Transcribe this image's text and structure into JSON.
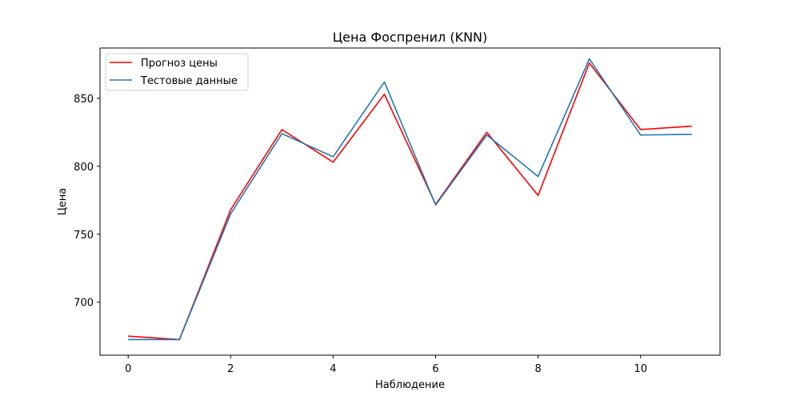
{
  "chart_data": {
    "type": "line",
    "title": "Цена Фоспренил (KNN)",
    "xlabel": "Наблюдение",
    "ylabel": "Цена",
    "x": [
      0,
      1,
      2,
      3,
      4,
      5,
      6,
      7,
      8,
      9,
      10,
      11
    ],
    "xticks": [
      "0",
      "2",
      "4",
      "6",
      "8",
      "10"
    ],
    "yticks": [
      "700",
      "750",
      "800",
      "850"
    ],
    "xlim": [
      -0.55,
      11.55
    ],
    "ylim": [
      661,
      887
    ],
    "grid": false,
    "legend_position": "top-left",
    "series": [
      {
        "name": "Прогноз цены",
        "color": "#ff0000",
        "values": [
          675,
          672.5,
          768,
          827,
          803,
          853,
          772,
          825,
          778.5,
          876,
          827,
          829.5
        ]
      },
      {
        "name": "Тестовые данные",
        "color": "#1f77b4",
        "values": [
          672.5,
          672.5,
          765,
          824,
          807,
          862,
          771.5,
          823,
          792.5,
          879,
          823,
          823.5
        ]
      }
    ]
  }
}
